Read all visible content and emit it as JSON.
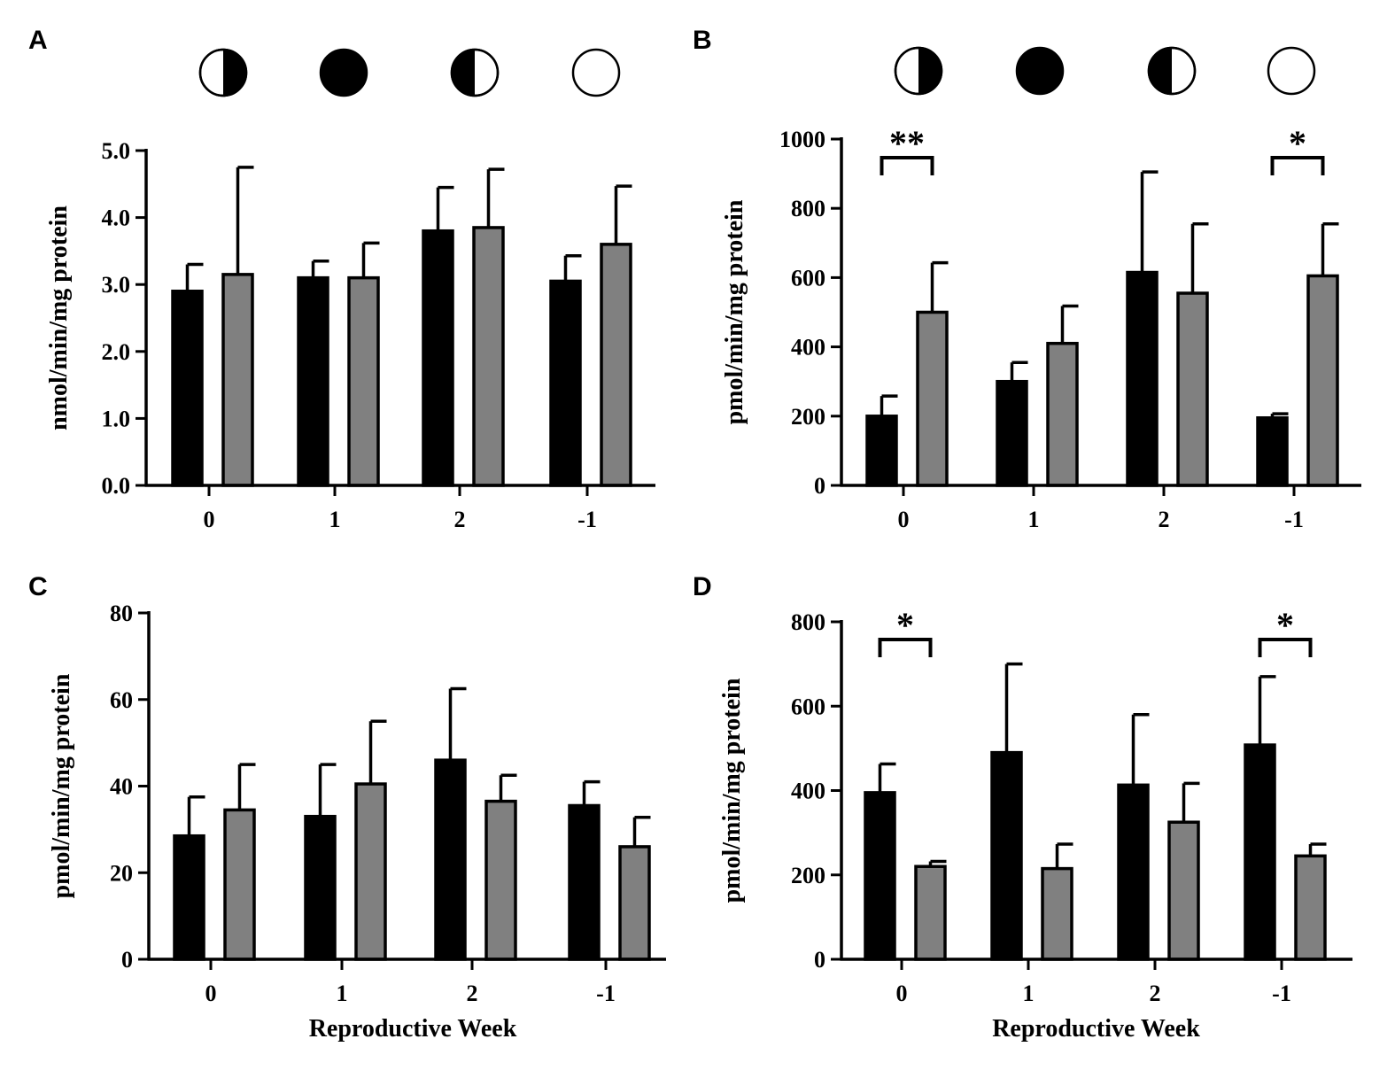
{
  "figure": {
    "colors": {
      "black": "#000000",
      "gray": "#808080",
      "ink": "#000000",
      "paper": "#ffffff"
    }
  },
  "chart_data": [
    {
      "panel": "A",
      "type": "bar",
      "ylabel": "nmol/min/mg protein",
      "xlabel": "",
      "ylim": [
        0,
        5
      ],
      "yticks": [
        "0.0",
        "1.0",
        "2.0",
        "3.0",
        "4.0",
        "5.0"
      ],
      "ytick_values": [
        0,
        1,
        2,
        3,
        4,
        5
      ],
      "categories": [
        "0",
        "1",
        "2",
        "-1"
      ],
      "moon_phases": [
        "first-quarter-moon",
        "new-moon",
        "last-quarter-moon",
        "full-moon"
      ],
      "series": [
        {
          "name": "black",
          "color": "#000000",
          "values": [
            2.9,
            3.1,
            3.8,
            3.05
          ],
          "errors": [
            0.4,
            0.25,
            0.65,
            0.38
          ]
        },
        {
          "name": "gray",
          "color": "#808080",
          "values": [
            3.15,
            3.1,
            3.85,
            3.6
          ],
          "errors": [
            1.6,
            0.52,
            0.87,
            0.87
          ]
        }
      ],
      "significance": []
    },
    {
      "panel": "B",
      "type": "bar",
      "ylabel": "pmol/min/mg protein",
      "xlabel": "",
      "ylim": [
        0,
        1000
      ],
      "yticks": [
        "0",
        "200",
        "400",
        "600",
        "800",
        "1000"
      ],
      "ytick_values": [
        0,
        200,
        400,
        600,
        800,
        1000
      ],
      "categories": [
        "0",
        "1",
        "2",
        "-1"
      ],
      "moon_phases": [
        "first-quarter-moon",
        "new-moon",
        "last-quarter-moon",
        "full-moon"
      ],
      "series": [
        {
          "name": "black",
          "color": "#000000",
          "values": [
            200,
            300,
            615,
            195
          ],
          "errors": [
            58,
            55,
            290,
            12
          ]
        },
        {
          "name": "gray",
          "color": "#808080",
          "values": [
            500,
            410,
            555,
            605
          ],
          "errors": [
            143,
            108,
            200,
            150
          ]
        }
      ],
      "significance": [
        {
          "category_index": 0,
          "label": "**"
        },
        {
          "category_index": 3,
          "label": "*"
        }
      ]
    },
    {
      "panel": "C",
      "type": "bar",
      "ylabel": "pmol/min/mg protein",
      "xlabel": "Reproductive  Week",
      "ylim": [
        0,
        80
      ],
      "yticks": [
        "0",
        "20",
        "40",
        "60",
        "80"
      ],
      "ytick_values": [
        0,
        20,
        40,
        60,
        80
      ],
      "categories": [
        "0",
        "1",
        "2",
        "-1"
      ],
      "moon_phases": [],
      "series": [
        {
          "name": "black",
          "color": "#000000",
          "values": [
            28.5,
            33,
            46,
            35.5
          ],
          "errors": [
            9,
            12,
            16.5,
            5.5
          ]
        },
        {
          "name": "gray",
          "color": "#808080",
          "values": [
            34.5,
            40.5,
            36.5,
            26
          ],
          "errors": [
            10.5,
            14.5,
            6,
            6.8
          ]
        }
      ],
      "significance": []
    },
    {
      "panel": "D",
      "type": "bar",
      "ylabel": "pmol/min/mg protein",
      "xlabel": "Reproductive  Week",
      "ylim": [
        0,
        800
      ],
      "yticks": [
        "0",
        "200",
        "400",
        "600",
        "800"
      ],
      "ytick_values": [
        0,
        200,
        400,
        600,
        800
      ],
      "categories": [
        "0",
        "1",
        "2",
        "-1"
      ],
      "moon_phases": [],
      "series": [
        {
          "name": "black",
          "color": "#000000",
          "values": [
            395,
            490,
            413,
            508
          ],
          "errors": [
            68,
            210,
            167,
            162
          ]
        },
        {
          "name": "gray",
          "color": "#808080",
          "values": [
            220,
            215,
            325,
            245
          ],
          "errors": [
            12,
            58,
            92,
            28
          ]
        }
      ],
      "significance": [
        {
          "category_index": 0,
          "label": "*"
        },
        {
          "category_index": 3,
          "label": "*"
        }
      ]
    }
  ]
}
